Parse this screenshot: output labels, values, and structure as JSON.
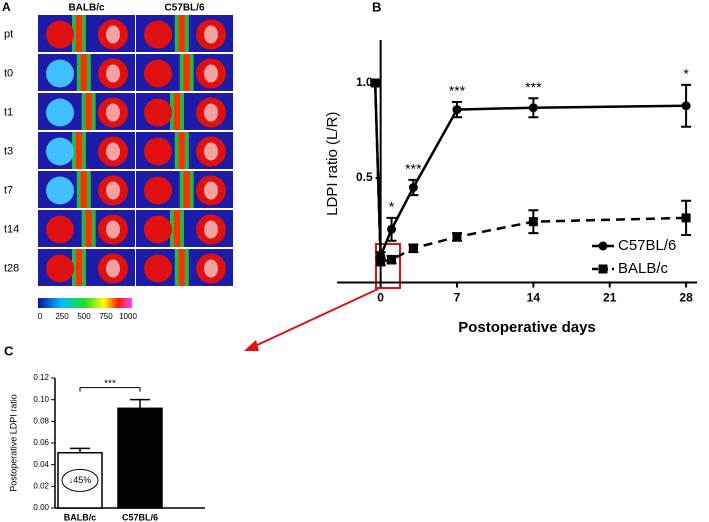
{
  "image_panel": {
    "label": "A",
    "columns": [
      "BALB/c",
      "C57BL/6"
    ],
    "rows": [
      "pt",
      "t0",
      "t1",
      "t3",
      "t7",
      "t14",
      "t28"
    ],
    "colorbar_ticks": [
      0,
      250,
      500,
      750,
      1000
    ]
  },
  "chart_data": [
    {
      "type": "line",
      "panel_label": "B",
      "xlabel": "Postoperative days",
      "ylabel": "LDPI ratio (L/R)",
      "x": [
        -0.5,
        0,
        1,
        3,
        7,
        14,
        28
      ],
      "series": [
        {
          "name": "C57BL/6",
          "color": "#000000",
          "marker": "circle",
          "dash": false,
          "values": [
            1.0,
            0.09,
            0.23,
            0.45,
            0.86,
            0.87,
            0.88
          ],
          "errors": [
            0.01,
            0.02,
            0.06,
            0.04,
            0.04,
            0.05,
            0.11
          ]
        },
        {
          "name": "BALB/c",
          "color": "#000000",
          "marker": "square",
          "dash": true,
          "values": [
            1.0,
            0.06,
            0.07,
            0.13,
            0.19,
            0.27,
            0.29
          ],
          "errors": [
            0.01,
            0.02,
            0.02,
            0.02,
            0.02,
            0.06,
            0.09
          ]
        }
      ],
      "xlim": [
        -4,
        29
      ],
      "xticks": [
        0,
        7,
        14,
        21,
        28
      ],
      "ylim": [
        -0.05,
        1.2
      ],
      "yticks": [
        0.5,
        {
          "value": 1,
          "label": "1.0"
        }
      ],
      "annotations": [
        {
          "x": 1,
          "text": "*"
        },
        {
          "x": 3,
          "text": "***"
        },
        {
          "x": 7,
          "text": "***"
        },
        {
          "x": 14,
          "text": "***"
        },
        {
          "x": 28,
          "text": "*"
        }
      ],
      "legend": "lower right"
    },
    {
      "type": "bar",
      "panel_label": "C",
      "ylabel": "Postoperative LDPI ratio",
      "categories": [
        "BALB/c",
        "C57BL/6"
      ],
      "values": [
        0.051,
        0.092
      ],
      "errors": [
        0.004,
        0.008
      ],
      "colors": [
        "#ffffff",
        "#000000"
      ],
      "ylim": [
        0,
        0.12
      ],
      "yticks": [
        {
          "value": 0,
          "label": "0.00"
        },
        {
          "value": 0.02,
          "label": "0.02"
        },
        {
          "value": 0.04,
          "label": "0.04"
        },
        {
          "value": 0.06,
          "label": "0.06"
        },
        {
          "value": 0.08,
          "label": "0.08"
        },
        {
          "value": 0.1,
          "label": "0.10"
        },
        {
          "value": 0.12,
          "label": "0.12"
        }
      ],
      "significance": "***",
      "inset_label": "↓45%"
    }
  ]
}
